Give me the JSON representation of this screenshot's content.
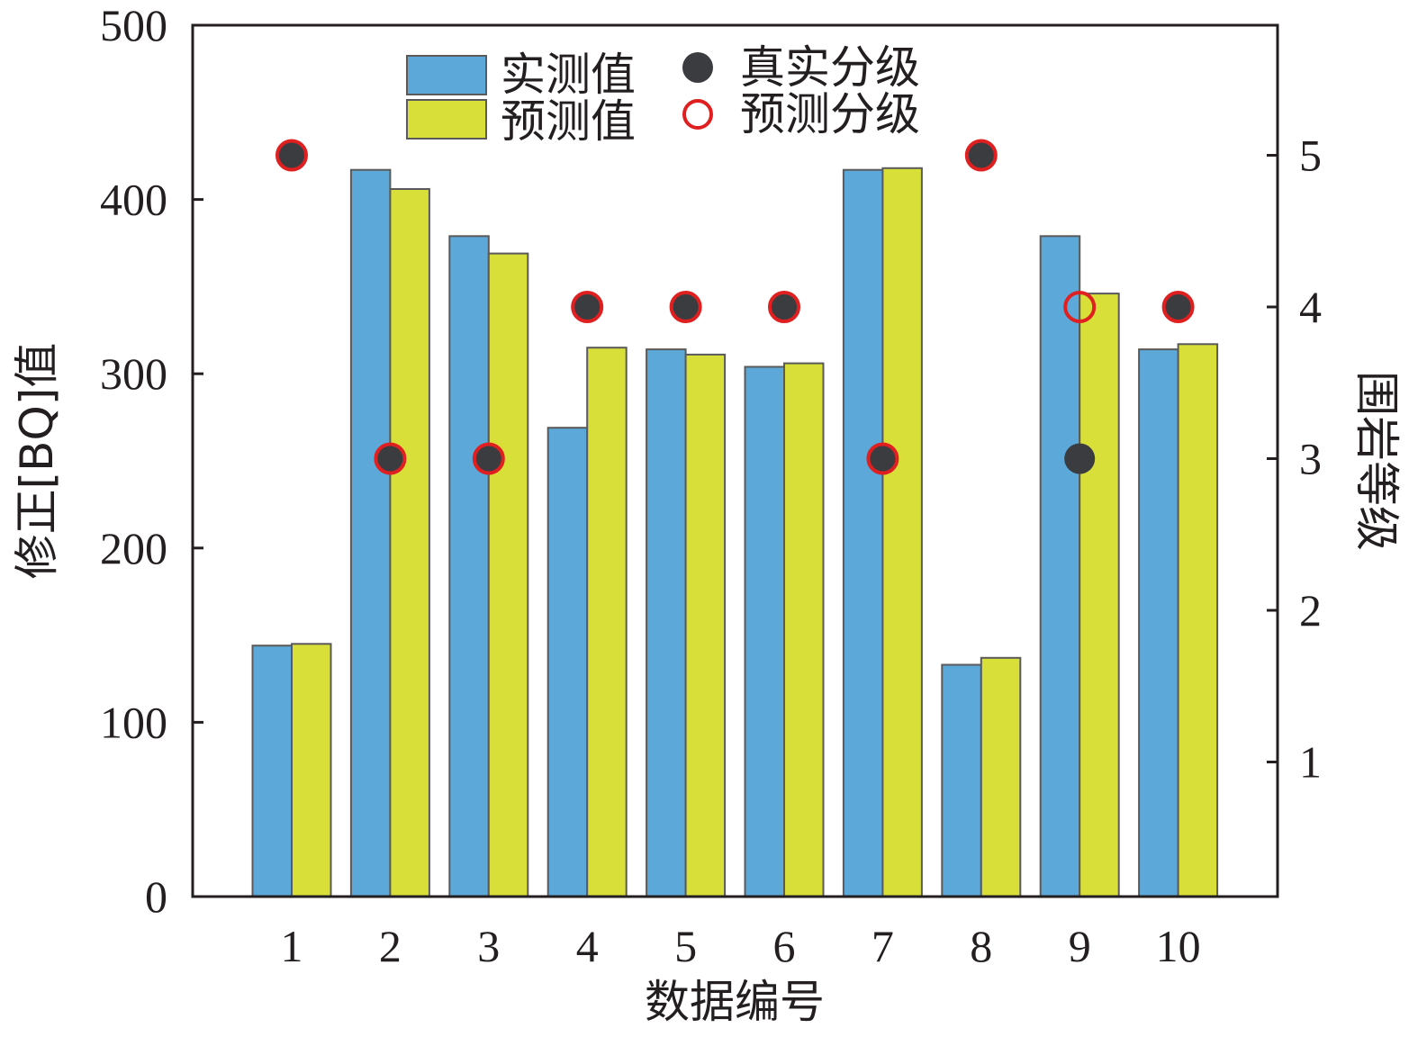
{
  "chart_data": {
    "type": "bar",
    "xlabel": "数据编号",
    "ylabel": "修正[BQ]值",
    "y2label": "围岩等级",
    "ylim": [
      0,
      500
    ],
    "yticks": [
      0,
      100,
      200,
      300,
      400,
      500
    ],
    "y2ticks": [
      1,
      2,
      3,
      4,
      5
    ],
    "categories": [
      "1",
      "2",
      "3",
      "4",
      "5",
      "6",
      "7",
      "8",
      "9",
      "10"
    ],
    "series": [
      {
        "name": "实测值",
        "type": "bar",
        "axis": "left",
        "color": "#5ca8d8",
        "values": [
          144,
          417,
          379,
          269,
          314,
          304,
          417,
          133,
          379,
          314
        ]
      },
      {
        "name": "预测值",
        "type": "bar",
        "axis": "left",
        "color": "#d8df38",
        "values": [
          145,
          406,
          369,
          315,
          311,
          306,
          418,
          137,
          346,
          317
        ]
      },
      {
        "name": "真实分级",
        "type": "scatter",
        "axis": "right",
        "color": "#3a3c40",
        "values": [
          5,
          3,
          3,
          4,
          4,
          4,
          3,
          5,
          3,
          4
        ]
      },
      {
        "name": "预测分级",
        "type": "scatter",
        "axis": "right",
        "color": "#e02020",
        "values": [
          5,
          3,
          3,
          4,
          4,
          4,
          3,
          5,
          4,
          4
        ]
      }
    ],
    "legend": "top-center",
    "grid": false
  }
}
